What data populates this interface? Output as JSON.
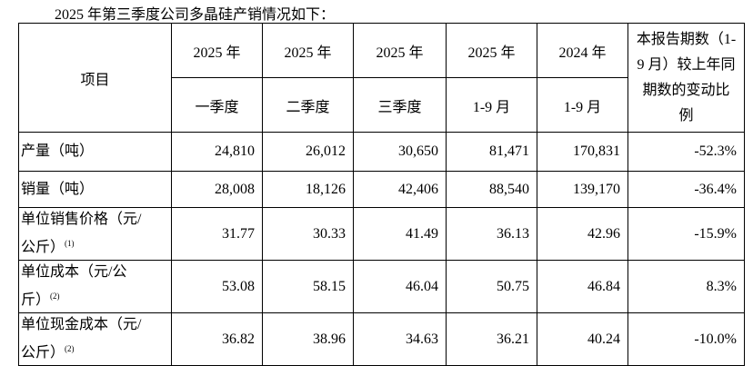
{
  "caption": "2025 年第三季度公司多晶硅产销情况如下：",
  "table": {
    "header": {
      "item": "项目",
      "years": [
        "2025 年",
        "2025 年",
        "2025 年",
        "2025 年",
        "2024 年"
      ],
      "periods": [
        "一季度",
        "二季度",
        "三季度",
        "1-9 月",
        "1-9 月"
      ],
      "change": "本报告期数（1-9 月）较上年同期数的变动比例"
    },
    "rows": [
      {
        "label": "产量（吨）",
        "values": [
          "24,810",
          "26,012",
          "30,650",
          "81,471",
          "170,831",
          "-52.3%"
        ]
      },
      {
        "label": "销量（吨）",
        "values": [
          "28,008",
          "18,126",
          "42,406",
          "88,540",
          "139,170",
          "-36.4%"
        ]
      },
      {
        "label": "单位销售价格（元/公斤）",
        "note": "(1)",
        "values": [
          "31.77",
          "30.33",
          "41.49",
          "36.13",
          "42.96",
          "-15.9%"
        ]
      },
      {
        "label": "单位成本（元/公斤）",
        "note": "(2)",
        "values": [
          "53.08",
          "58.15",
          "46.04",
          "50.75",
          "46.84",
          "8.3%"
        ]
      },
      {
        "label": "单位现金成本（元/公斤）",
        "note": "(2)",
        "values": [
          "36.82",
          "38.96",
          "34.63",
          "36.21",
          "40.24",
          "-10.0%"
        ]
      }
    ]
  }
}
